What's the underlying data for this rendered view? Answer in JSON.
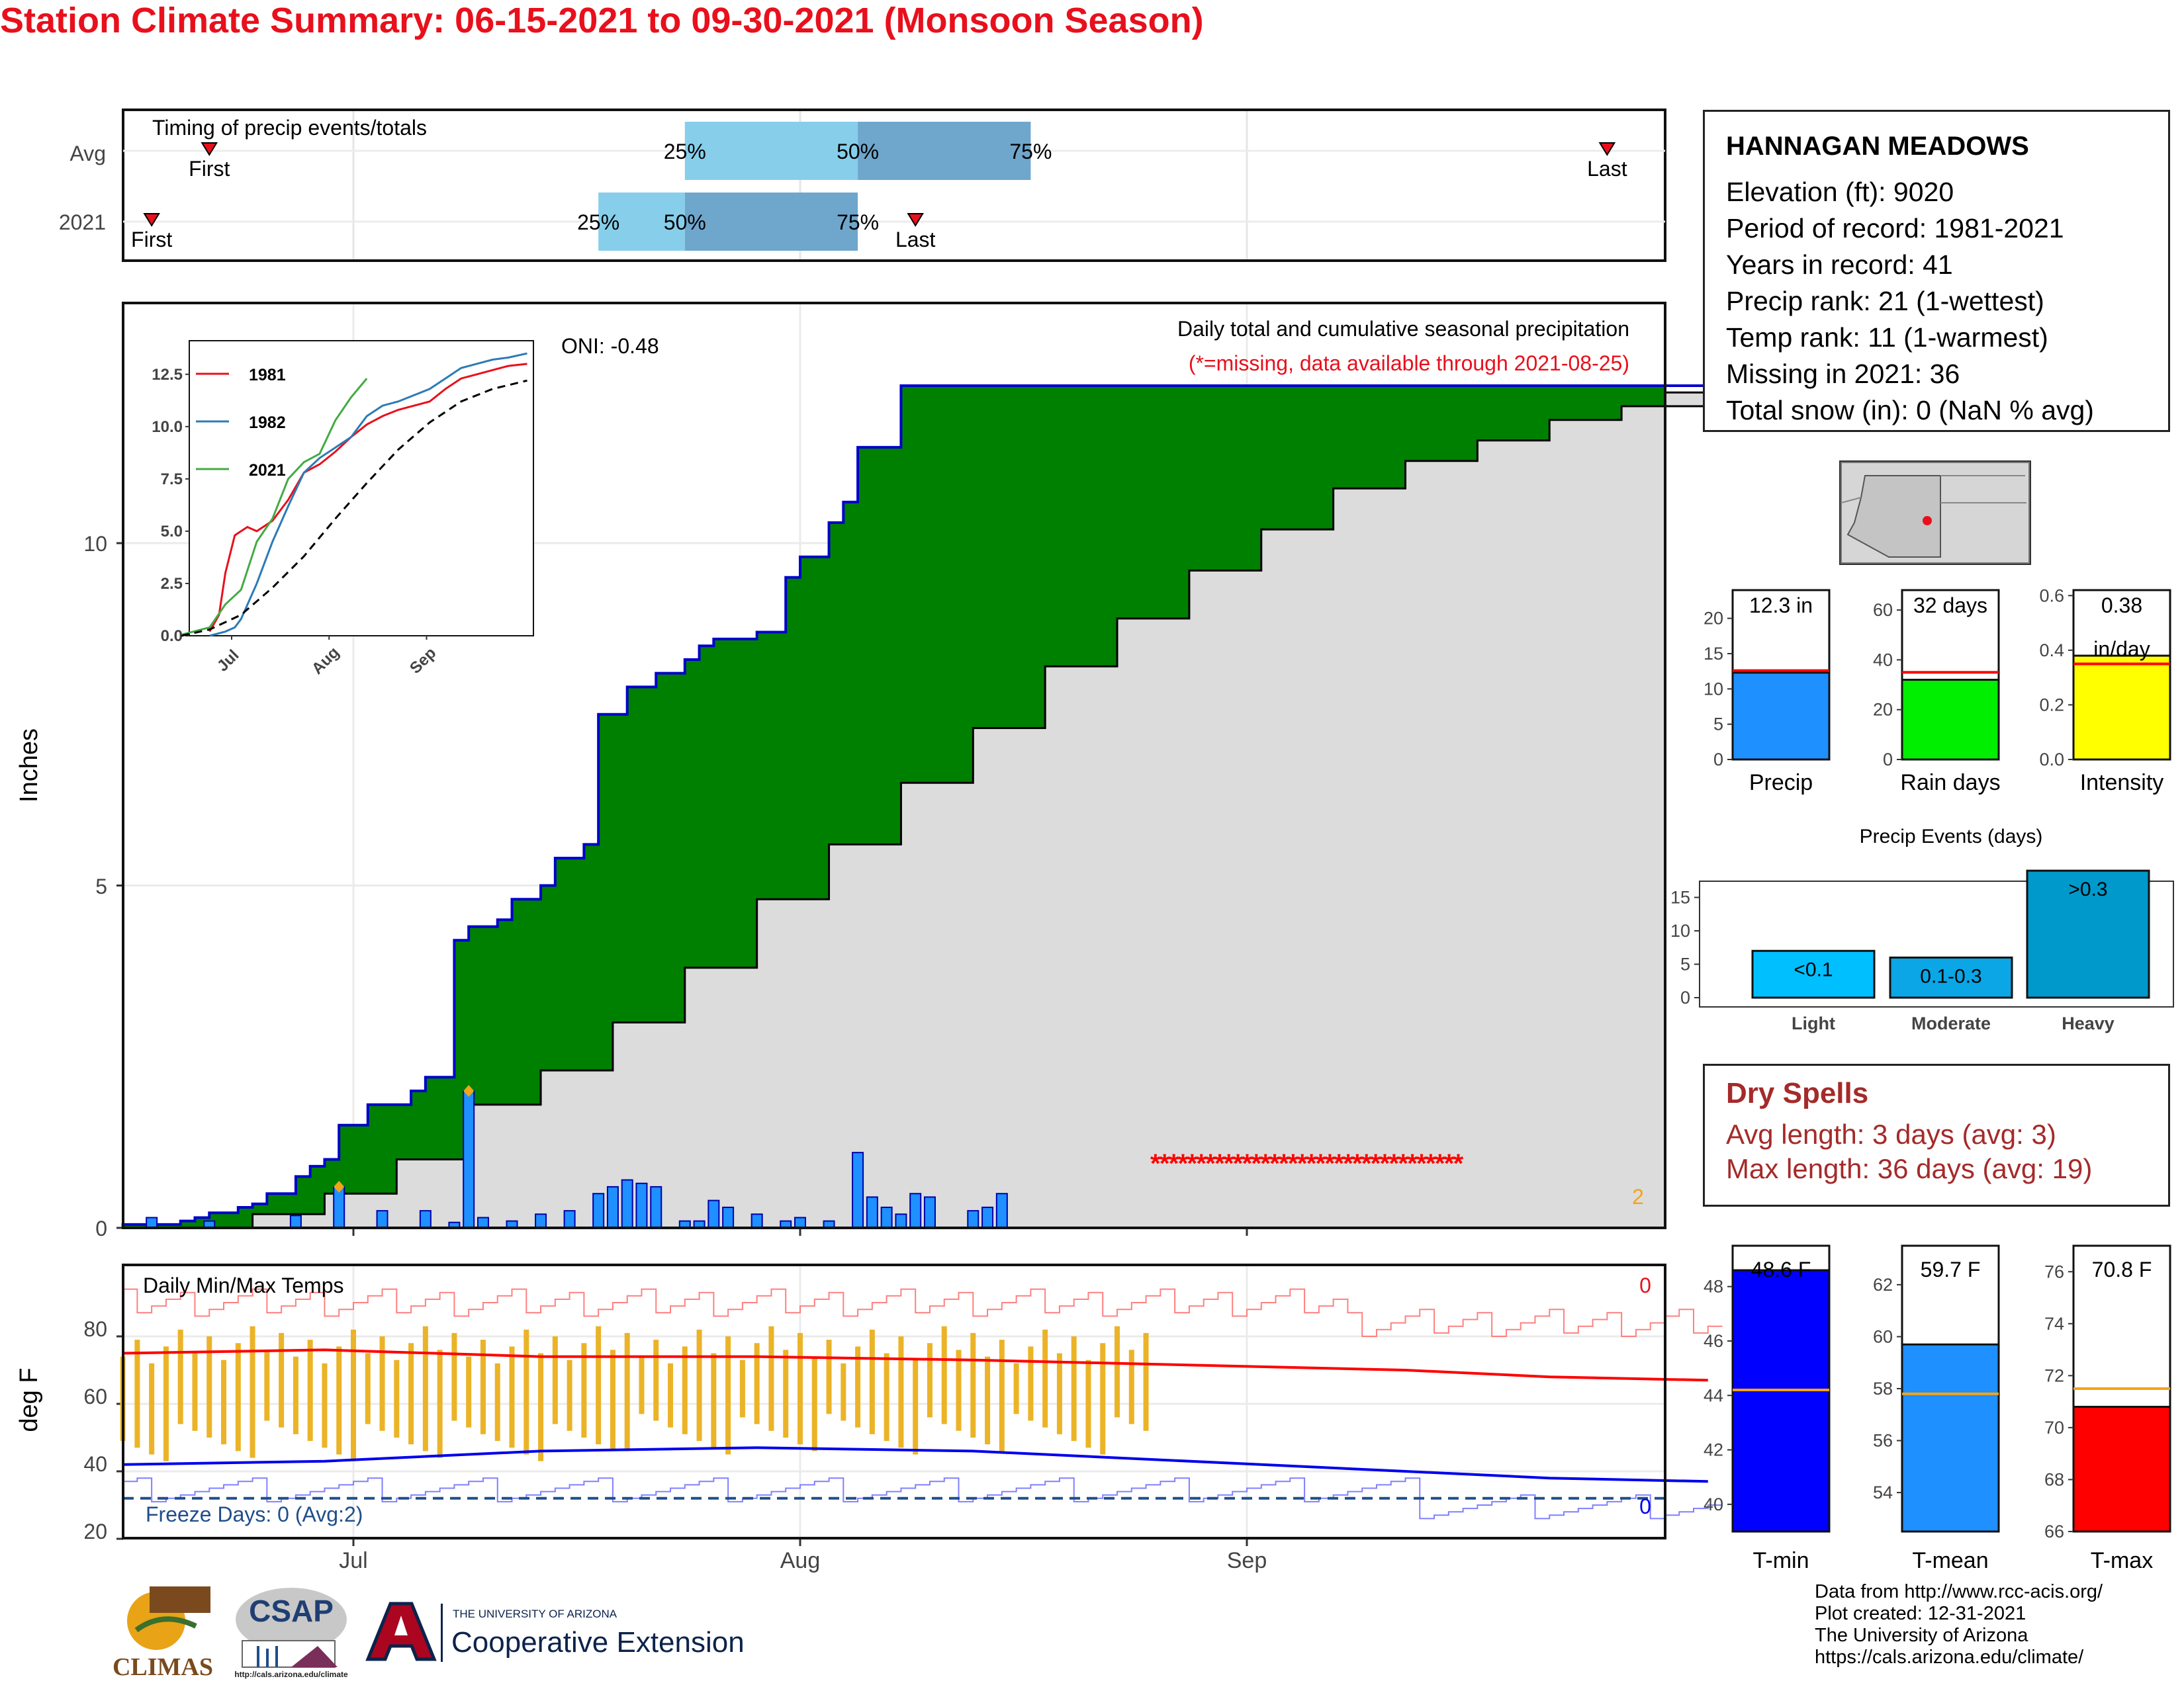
{
  "title": "Station Climate Summary: 06-15-2021 to 09-30-2021 (Monsoon Season)",
  "timing": {
    "title": "Timing of precip events/totals",
    "rows": [
      {
        "label": "Avg",
        "first_label": "First",
        "last_label": "Last",
        "first_doy": 172,
        "last_doy": 269,
        "q25": 205,
        "q50": 217,
        "q75": 229,
        "q25_label": "25%",
        "q50_label": "50%",
        "q75_label": "75%"
      },
      {
        "label": "2021",
        "first_label": "First",
        "last_label": "Last",
        "first_doy": 168,
        "last_doy": 221,
        "q25": 199,
        "q50": 205,
        "q75": 217,
        "q25_label": "25%",
        "q50_label": "50%",
        "q75_label": "75%"
      }
    ]
  },
  "precip_panel": {
    "title": "Daily total and cumulative seasonal precipitation",
    "missing_note": "(*=missing, data available through 2021-08-25)",
    "oni": "ONI: -0.48",
    "ylabel": "Inches",
    "y_ticks": [
      "0",
      "5",
      "10"
    ],
    "missing_marks": "**********************************",
    "orange_count": "2"
  },
  "inset": {
    "legend": [
      "1981",
      "1982",
      "2021"
    ],
    "y_ticks": [
      "0.0",
      "2.5",
      "5.0",
      "7.5",
      "10.0",
      "12.5"
    ],
    "x_ticks": [
      "Jul",
      "Aug",
      "Sep"
    ]
  },
  "temp_panel": {
    "title": "Daily Min/Max Temps",
    "ylabel": "deg F",
    "y_ticks": [
      "20",
      "40",
      "60",
      "80"
    ],
    "freeze_text": "Freeze Days: 0 (Avg:2)",
    "hot_count": "0",
    "cold_count": "0",
    "x_ticks": [
      "Jul",
      "Aug",
      "Sep"
    ]
  },
  "station": {
    "name": "HANNAGAN MEADOWS",
    "lines": [
      "Elevation (ft): 9020",
      "Period of record: 1981-2021",
      "Years in record: 41",
      "Precip rank: 21 (1-wettest)",
      "Temp rank: 11 (1-warmest)",
      "Missing in 2021: 36",
      "Total snow (in): 0 (NaN % avg)"
    ]
  },
  "summary_bars": [
    {
      "label": "Precip",
      "value_text": "12.3 in",
      "value": 12.3,
      "avg": 12.6,
      "ymax": 24,
      "ticks": [
        "0",
        "5",
        "10",
        "15",
        "20"
      ],
      "tick_vals": [
        0,
        5,
        10,
        15,
        20
      ],
      "color": "#1e90ff"
    },
    {
      "label": "Rain days",
      "value_text": "32 days",
      "value": 32,
      "avg": 35,
      "ymax": 68,
      "ticks": [
        "0",
        "20",
        "40",
        "60"
      ],
      "tick_vals": [
        0,
        20,
        40,
        60
      ],
      "color": "#00ee00"
    },
    {
      "label": "Intensity",
      "value_text": "0.38",
      "value_text2": "in/day",
      "value": 0.38,
      "avg": 0.35,
      "ymax": 0.62,
      "ticks": [
        "0.0",
        "0.2",
        "0.4",
        "0.6"
      ],
      "tick_vals": [
        0,
        0.2,
        0.4,
        0.6
      ],
      "color": "#ffff00"
    }
  ],
  "events": {
    "title": "Precip Events (days)",
    "categories": [
      "Light",
      "Moderate",
      "Heavy"
    ],
    "bar_labels": [
      "<0.1",
      "0.1-0.3",
      ">0.3"
    ],
    "values": [
      7,
      6,
      19
    ],
    "ticks": [
      "0",
      "5",
      "10",
      "15"
    ],
    "color": "#0099cc"
  },
  "dry_spells": {
    "title": "Dry Spells",
    "lines": [
      "Avg length: 3 days (avg: 3)",
      "Max length: 36 days (avg: 19)"
    ],
    "color": "#a52a2a"
  },
  "temp_bars": [
    {
      "label": "T-min",
      "value_text": "48.6 F",
      "value": 48.6,
      "avg": 44.2,
      "ymin": 39,
      "ymax": 49.5,
      "ticks": [
        "40",
        "42",
        "44",
        "46",
        "48"
      ],
      "tick_vals": [
        40,
        42,
        44,
        46,
        48
      ],
      "color": "#0000ff"
    },
    {
      "label": "T-mean",
      "value_text": "59.7 F",
      "value": 59.7,
      "avg": 57.8,
      "ymin": 52.5,
      "ymax": 63.5,
      "ticks": [
        "54",
        "56",
        "58",
        "60",
        "62"
      ],
      "tick_vals": [
        54,
        56,
        58,
        60,
        62
      ],
      "color": "#1e90ff"
    },
    {
      "label": "T-max",
      "value_text": "70.8 F",
      "value": 70.8,
      "avg": 71.5,
      "ymin": 66,
      "ymax": 77,
      "ticks": [
        "66",
        "68",
        "70",
        "72",
        "74",
        "76"
      ],
      "tick_vals": [
        66,
        68,
        70,
        72,
        74,
        76
      ],
      "color": "#ff0000"
    }
  ],
  "logos": {
    "climas": "CLIMAS",
    "csap": "CSAP",
    "csap_url": "http://cals.arizona.edu/climate",
    "ua_small": "THE UNIVERSITY OF ARIZONA",
    "ua_big": "Cooperative Extension"
  },
  "credits": [
    "Data from http://www.rcc-acis.org/",
    "Plot created: 12-31-2021",
    "The University of Arizona",
    "https://cals.arizona.edu/climate/"
  ],
  "chart_data": [
    {
      "type": "area",
      "title": "Daily total and cumulative seasonal precipitation",
      "ylabel": "Inches",
      "x_ticks": [
        "Jul",
        "Aug",
        "Sep"
      ],
      "ylim": [
        0,
        13.5
      ],
      "series": [
        {
          "name": "2021",
          "x_doy": [
            166,
            170,
            171,
            172,
            174,
            175,
            176,
            178,
            179,
            180,
            181,
            183,
            184,
            186,
            187,
            188,
            189,
            190,
            192,
            193,
            195,
            196,
            198,
            199,
            201,
            203,
            205,
            206,
            207,
            210,
            212,
            213,
            215,
            216,
            217,
            218,
            220,
            223,
            225,
            227,
            229,
            231,
            234,
            236,
            238,
            240,
            242,
            245,
            247,
            250,
            253,
            256,
            259,
            262,
            265,
            268,
            270,
            273,
            276
          ],
          "cumulative": [
            0.05,
            0.1,
            0.15,
            0.22,
            0.3,
            0.35,
            0.5,
            0.75,
            0.9,
            1.0,
            1.5,
            1.8,
            1.8,
            2.0,
            2.2,
            2.2,
            4.2,
            4.4,
            4.5,
            4.8,
            5.0,
            5.4,
            5.6,
            7.5,
            7.9,
            8.1,
            8.3,
            8.5,
            8.6,
            8.7,
            9.5,
            9.8,
            10.3,
            10.6,
            11.4,
            11.4,
            12.3,
            12.3,
            12.3,
            12.3,
            12.3,
            12.3,
            12.3,
            12.3,
            12.3,
            12.3,
            12.3,
            12.3,
            12.3,
            12.3,
            12.3,
            12.3,
            12.3,
            12.3,
            12.3,
            12.3,
            12.3,
            12.3,
            12.3
          ]
        },
        {
          "name": "Avg",
          "x_doy": [
            166,
            175,
            180,
            185,
            190,
            195,
            200,
            205,
            210,
            215,
            220,
            225,
            230,
            235,
            240,
            245,
            250,
            255,
            260,
            265,
            270,
            276
          ],
          "cumulative": [
            0.0,
            0.2,
            0.5,
            1.0,
            1.8,
            2.3,
            3.0,
            3.8,
            4.8,
            5.6,
            6.5,
            7.3,
            8.2,
            8.9,
            9.6,
            10.2,
            10.8,
            11.2,
            11.5,
            11.8,
            12.0,
            12.2
          ]
        }
      ],
      "daily_bars": {
        "x_doy": [
          168,
          172,
          178,
          181,
          184,
          187,
          189,
          190,
          191,
          193,
          195,
          197,
          199,
          200,
          201,
          202,
          203,
          205,
          206,
          207,
          208,
          210,
          212,
          213,
          215,
          217,
          218,
          219,
          220,
          221,
          222,
          225,
          226,
          227
        ],
        "values": [
          0.15,
          0.1,
          0.18,
          0.6,
          0.25,
          0.25,
          0.08,
          2.0,
          0.15,
          0.1,
          0.2,
          0.25,
          0.5,
          0.6,
          0.7,
          0.65,
          0.6,
          0.1,
          0.1,
          0.4,
          0.3,
          0.2,
          0.1,
          0.15,
          0.1,
          1.1,
          0.45,
          0.3,
          0.2,
          0.5,
          0.45,
          0.25,
          0.3,
          0.5
        ]
      }
    },
    {
      "type": "line",
      "title": "",
      "x_ticks": [
        "Jul",
        "Aug",
        "Sep"
      ],
      "ylim": [
        0,
        13.5
      ],
      "series": [
        {
          "name": "1981",
          "x": [
            175,
            178,
            180,
            183,
            185,
            187,
            190,
            195,
            200,
            205,
            210,
            215,
            220,
            225,
            230,
            235,
            240,
            245,
            250,
            255,
            260,
            265,
            270,
            276
          ],
          "values": [
            0.2,
            1.0,
            3.0,
            4.8,
            5.0,
            5.2,
            5.0,
            5.5,
            6.5,
            7.8,
            8.2,
            8.8,
            9.5,
            10.1,
            10.5,
            10.8,
            11.0,
            11.2,
            11.8,
            12.3,
            12.5,
            12.7,
            12.9,
            13.0
          ]
        },
        {
          "name": "1982",
          "x": [
            175,
            180,
            183,
            185,
            190,
            195,
            200,
            205,
            210,
            215,
            220,
            225,
            230,
            235,
            240,
            245,
            250,
            255,
            260,
            265,
            270,
            276
          ],
          "values": [
            0.0,
            0.2,
            0.4,
            0.8,
            2.5,
            4.5,
            6.2,
            7.8,
            8.5,
            9.0,
            9.5,
            10.5,
            11.0,
            11.2,
            11.5,
            11.8,
            12.3,
            12.8,
            13.0,
            13.2,
            13.3,
            13.5
          ]
        },
        {
          "name": "2021",
          "x": [
            166,
            175,
            180,
            185,
            190,
            195,
            200,
            205,
            210,
            215,
            220,
            225
          ],
          "values": [
            0.05,
            0.4,
            1.5,
            2.2,
            4.5,
            5.6,
            7.5,
            8.3,
            8.7,
            10.3,
            11.4,
            12.3
          ]
        },
        {
          "name": "Avg",
          "x": [
            166,
            175,
            185,
            195,
            205,
            215,
            225,
            235,
            245,
            255,
            265,
            276
          ],
          "values": [
            0.0,
            0.3,
            1.0,
            2.3,
            3.8,
            5.6,
            7.3,
            8.9,
            10.2,
            11.2,
            11.8,
            12.2
          ]
        }
      ]
    },
    {
      "type": "line",
      "title": "Daily Min/Max Temps",
      "ylabel": "deg F",
      "x_ticks": [
        "Jul",
        "Aug",
        "Sep"
      ],
      "ylim": [
        18,
        94
      ],
      "series": [
        {
          "name": "Avg max",
          "x": [
            166,
            180,
            195,
            210,
            225,
            235,
            245,
            255,
            265,
            276
          ],
          "values": [
            75,
            76,
            74,
            74,
            73,
            72,
            71,
            70,
            68,
            67
          ]
        },
        {
          "name": "Avg min",
          "x": [
            166,
            180,
            195,
            210,
            225,
            235,
            245,
            255,
            265,
            276
          ],
          "values": [
            42,
            43,
            46,
            47,
            46,
            44,
            42,
            40,
            38,
            37
          ]
        }
      ]
    },
    {
      "type": "bar",
      "title": "Precip Events (days)",
      "categories": [
        "Light",
        "Moderate",
        "Heavy"
      ],
      "values": [
        7,
        6,
        19
      ]
    }
  ]
}
